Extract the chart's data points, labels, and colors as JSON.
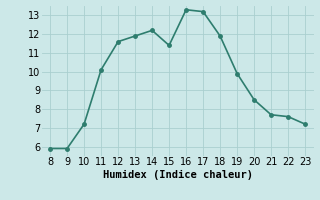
{
  "x": [
    8,
    9,
    10,
    11,
    12,
    13,
    14,
    15,
    16,
    17,
    18,
    19,
    20,
    21,
    22,
    23
  ],
  "y": [
    5.9,
    5.9,
    7.2,
    10.1,
    11.6,
    11.9,
    12.2,
    11.4,
    13.3,
    13.2,
    11.9,
    9.9,
    8.5,
    7.7,
    7.6,
    7.2
  ],
  "line_color": "#2e7d6e",
  "marker_color": "#2e7d6e",
  "bg_color": "#cce8e8",
  "grid_color": "#aacfcf",
  "xlabel": "Humidex (Indice chaleur)",
  "xlim": [
    7.5,
    23.5
  ],
  "ylim": [
    5.5,
    13.5
  ],
  "yticks": [
    6,
    7,
    8,
    9,
    10,
    11,
    12,
    13
  ],
  "xticks": [
    8,
    9,
    10,
    11,
    12,
    13,
    14,
    15,
    16,
    17,
    18,
    19,
    20,
    21,
    22,
    23
  ],
  "xlabel_fontsize": 7.5,
  "tick_fontsize": 7,
  "line_width": 1.2,
  "marker_size": 2.5
}
